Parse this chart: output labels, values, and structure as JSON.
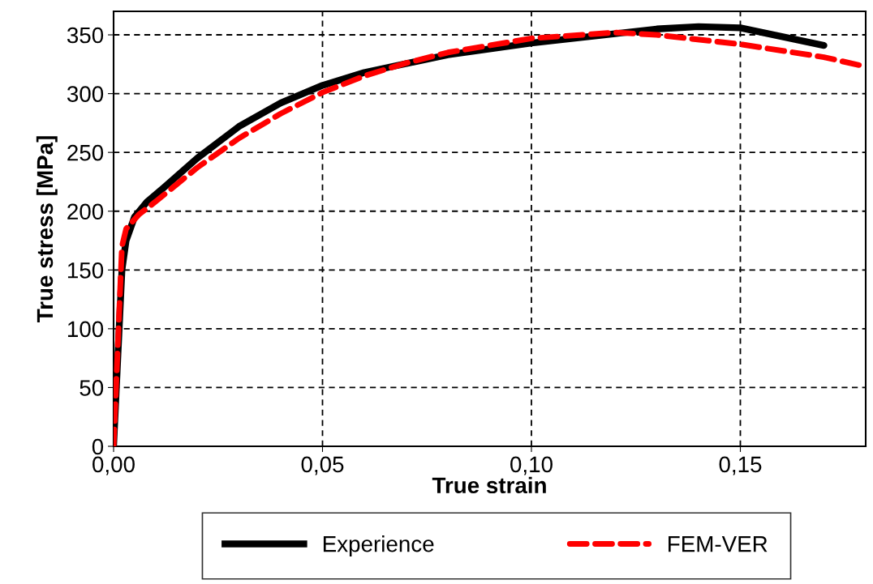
{
  "chart_data": {
    "type": "line",
    "xlabel": "True strain",
    "ylabel": "True stress [MPa]",
    "xlim": [
      0,
      0.18
    ],
    "xticks": [
      {
        "value": 0,
        "label": "0,00"
      },
      {
        "value": 0.05,
        "label": "0,05"
      },
      {
        "value": 0.1,
        "label": "0,10"
      },
      {
        "value": 0.15,
        "label": "0,15"
      }
    ],
    "ylim": [
      0,
      370
    ],
    "yticks": [
      0,
      50,
      100,
      150,
      200,
      250,
      300,
      350
    ],
    "grid": true,
    "legend": "bottom",
    "series": [
      {
        "name": "Experience",
        "color": "#000000",
        "line_style": "solid",
        "x": [
          0,
          0.002,
          0.003,
          0.005,
          0.008,
          0.012,
          0.02,
          0.03,
          0.04,
          0.05,
          0.06,
          0.08,
          0.1,
          0.12,
          0.13,
          0.14,
          0.15,
          0.17
        ],
        "values": [
          0,
          150,
          175,
          195,
          208,
          220,
          245,
          272,
          292,
          307,
          318,
          333,
          343,
          351,
          355,
          357,
          356,
          341
        ]
      },
      {
        "name": "FEM-VER",
        "color": "#ff0000",
        "line_style": "dashed",
        "x": [
          0,
          0.002,
          0.003,
          0.006,
          0.01,
          0.02,
          0.03,
          0.04,
          0.05,
          0.06,
          0.07,
          0.08,
          0.1,
          0.12,
          0.13,
          0.15,
          0.17,
          0.18
        ],
        "values": [
          0,
          170,
          185,
          197,
          208,
          237,
          262,
          283,
          301,
          315,
          326,
          335,
          347,
          352,
          350,
          342,
          331,
          323
        ]
      }
    ]
  }
}
